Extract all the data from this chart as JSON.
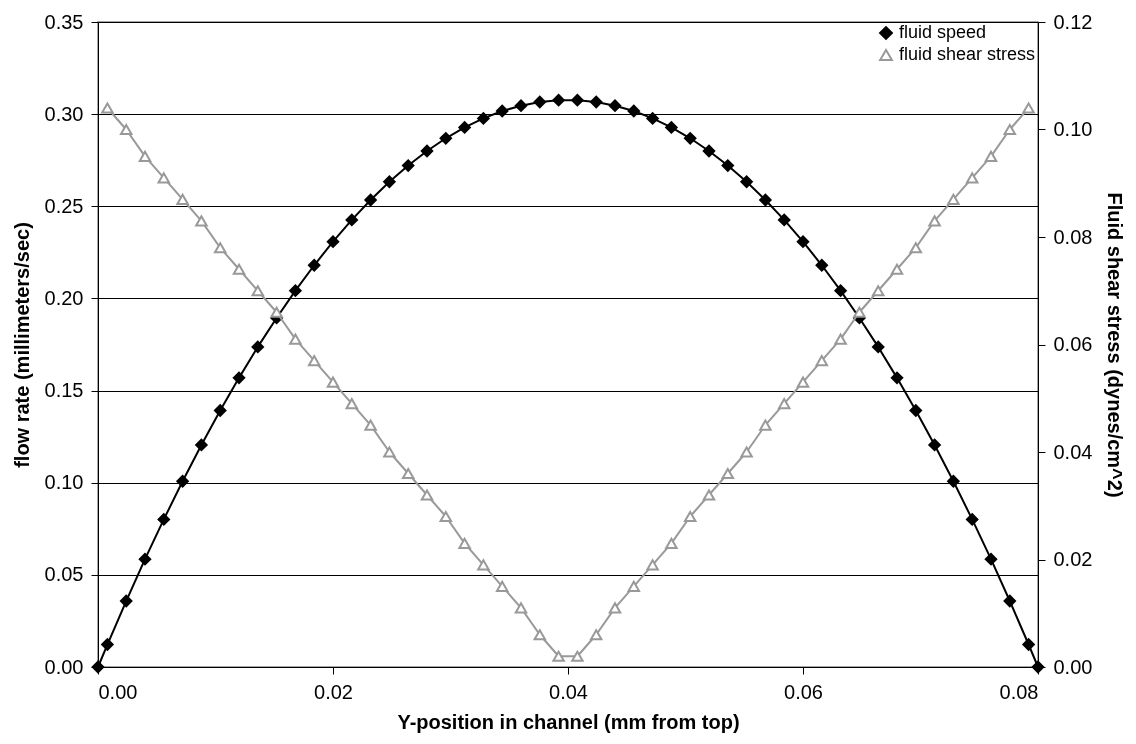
{
  "chart_data": {
    "type": "line",
    "xlabel": "Y-position in channel (mm from top)",
    "ylabel": "flow rate (millimeters/sec)",
    "y2label": "Fluid shear stress (dynes/cm^2)",
    "xlim": [
      0,
      0.08
    ],
    "xticks": [
      {
        "value": 0,
        "label": "0.00"
      },
      {
        "value": 0.02,
        "label": "0.02"
      },
      {
        "value": 0.04,
        "label": "0.04"
      },
      {
        "value": 0.06,
        "label": "0.06"
      },
      {
        "value": 0.08,
        "label": "0.08"
      }
    ],
    "ylim": [
      0,
      0.35
    ],
    "yticks": [
      {
        "value": 0,
        "label": "0.00"
      },
      {
        "value": 0.05,
        "label": "0.05"
      },
      {
        "value": 0.1,
        "label": "0.10"
      },
      {
        "value": 0.15,
        "label": "0.15"
      },
      {
        "value": 0.2,
        "label": "0.20"
      },
      {
        "value": 0.25,
        "label": "0.25"
      },
      {
        "value": 0.3,
        "label": "0.30"
      },
      {
        "value": 0.35,
        "label": "0.35"
      }
    ],
    "y2lim": [
      0,
      0.12
    ],
    "y2ticks": [
      {
        "value": 0,
        "label": "0.00"
      },
      {
        "value": 0.02,
        "label": "0.02"
      },
      {
        "value": 0.04,
        "label": "0.04"
      },
      {
        "value": 0.06,
        "label": "0.06"
      },
      {
        "value": 0.08,
        "label": "0.08"
      },
      {
        "value": 0.1,
        "label": "0.10"
      },
      {
        "value": 0.12,
        "label": "0.12"
      }
    ],
    "grid": "y",
    "legend": "top right",
    "line_style": "solid",
    "series": [
      {
        "name": "fluid speed",
        "color": "#000000",
        "marker": "diamond",
        "x": [
          0,
          0.0008,
          0.0024,
          0.004,
          0.0056,
          0.0072,
          0.0088,
          0.0104,
          0.012,
          0.0136,
          0.0152,
          0.0168,
          0.0184,
          0.02,
          0.0216,
          0.0232,
          0.0248,
          0.0264,
          0.028,
          0.0296,
          0.0312,
          0.0328,
          0.0344,
          0.036,
          0.0376,
          0.0392,
          0.0408,
          0.0424,
          0.044,
          0.0456,
          0.0472,
          0.0488,
          0.0504,
          0.052,
          0.0536,
          0.0552,
          0.0568,
          0.0584,
          0.06,
          0.0616,
          0.0632,
          0.0648,
          0.0664,
          0.068,
          0.0696,
          0.0712,
          0.0728,
          0.0744,
          0.076,
          0.0776,
          0.0792,
          0.08
        ],
        "values": [
          0,
          0.0122,
          0.0358,
          0.0585,
          0.0801,
          0.1008,
          0.1205,
          0.1392,
          0.1569,
          0.1737,
          0.1894,
          0.2042,
          0.218,
          0.2308,
          0.2426,
          0.2534,
          0.2633,
          0.2721,
          0.28,
          0.2869,
          0.2928,
          0.2977,
          0.3017,
          0.3046,
          0.3066,
          0.3076,
          0.3076,
          0.3066,
          0.3046,
          0.3017,
          0.2977,
          0.2928,
          0.2869,
          0.28,
          0.2721,
          0.2633,
          0.2534,
          0.2426,
          0.2308,
          0.218,
          0.2042,
          0.1894,
          0.1737,
          0.1569,
          0.1392,
          0.1205,
          0.1008,
          0.0801,
          0.0585,
          0.0358,
          0.0122,
          0
        ]
      },
      {
        "name": "fluid shear stress",
        "color": "#999999",
        "marker": "triangle",
        "axis": "y2",
        "x": [
          0.0008,
          0.0024,
          0.004,
          0.0056,
          0.0072,
          0.0088,
          0.0104,
          0.012,
          0.0136,
          0.0152,
          0.0168,
          0.0184,
          0.02,
          0.0216,
          0.0232,
          0.0248,
          0.0264,
          0.028,
          0.0296,
          0.0312,
          0.0328,
          0.0344,
          0.036,
          0.0376,
          0.0392,
          0.0408,
          0.0424,
          0.044,
          0.0456,
          0.0472,
          0.0488,
          0.0504,
          0.052,
          0.0536,
          0.0552,
          0.0568,
          0.0584,
          0.06,
          0.0616,
          0.0632,
          0.0648,
          0.0664,
          0.068,
          0.0696,
          0.0712,
          0.0728,
          0.0744,
          0.076,
          0.0776,
          0.0792
        ],
        "values": [
          0.104,
          0.1,
          0.095,
          0.091,
          0.087,
          0.083,
          0.078,
          0.074,
          0.07,
          0.066,
          0.061,
          0.057,
          0.053,
          0.049,
          0.045,
          0.04,
          0.036,
          0.032,
          0.028,
          0.023,
          0.019,
          0.015,
          0.011,
          0.006,
          0.002,
          0.002,
          0.006,
          0.011,
          0.015,
          0.019,
          0.023,
          0.028,
          0.032,
          0.036,
          0.04,
          0.045,
          0.049,
          0.053,
          0.057,
          0.061,
          0.066,
          0.07,
          0.074,
          0.078,
          0.083,
          0.087,
          0.091,
          0.095,
          0.1,
          0.104
        ]
      }
    ]
  }
}
